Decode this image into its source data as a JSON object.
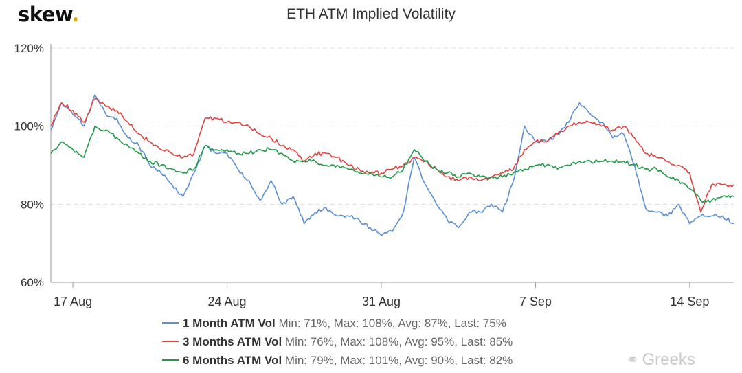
{
  "brand": {
    "name": "skew",
    "dot": "."
  },
  "watermark": {
    "icon": "wechat-icon",
    "text": "Greeks"
  },
  "colors": {
    "one_month": "#5b8fd6",
    "three_months": "#e2413e",
    "six_months": "#1f9a48",
    "grid": "#dddddd",
    "axis": "#555555"
  },
  "chart_data": {
    "type": "line",
    "title": "ETH ATM Implied Volatility",
    "xlabel": "",
    "ylabel": "",
    "x_range": [
      "2020-08-16",
      "2020-09-16"
    ],
    "x_ticks": [
      {
        "date": "2020-08-17",
        "label": "17 Aug"
      },
      {
        "date": "2020-08-24",
        "label": "24 Aug"
      },
      {
        "date": "2020-08-31",
        "label": "31 Aug"
      },
      {
        "date": "2020-09-07",
        "label": "7 Sep"
      },
      {
        "date": "2020-09-14",
        "label": "14 Sep"
      }
    ],
    "ylim": [
      60,
      120
    ],
    "y_ticks": [
      60,
      80,
      100,
      120
    ],
    "y_tick_labels": [
      "60%",
      "80%",
      "100%",
      "120%"
    ],
    "grid": true,
    "legend_position": "bottom-center",
    "series": [
      {
        "name": "1 Month ATM Vol",
        "stats": "Min: 71%, Max: 108%, Avg: 87%, Last: 75%",
        "color": "#5b8fd6",
        "points": [
          [
            "2020-08-16",
            99
          ],
          [
            "2020-08-16 12:00",
            106
          ],
          [
            "2020-08-17",
            103
          ],
          [
            "2020-08-17 12:00",
            100
          ],
          [
            "2020-08-18",
            108
          ],
          [
            "2020-08-18 12:00",
            103
          ],
          [
            "2020-08-19",
            102
          ],
          [
            "2020-08-19 12:00",
            97
          ],
          [
            "2020-08-20",
            95
          ],
          [
            "2020-08-20 12:00",
            90
          ],
          [
            "2020-08-21",
            88
          ],
          [
            "2020-08-21 12:00",
            85
          ],
          [
            "2020-08-22",
            82
          ],
          [
            "2020-08-22 12:00",
            88
          ],
          [
            "2020-08-23",
            95
          ],
          [
            "2020-08-23 12:00",
            93
          ],
          [
            "2020-08-24",
            93
          ],
          [
            "2020-08-24 12:00",
            89
          ],
          [
            "2020-08-25",
            86
          ],
          [
            "2020-08-25 12:00",
            81
          ],
          [
            "2020-08-26",
            86
          ],
          [
            "2020-08-26 12:00",
            80
          ],
          [
            "2020-08-27",
            82
          ],
          [
            "2020-08-27 12:00",
            75
          ],
          [
            "2020-08-28",
            78
          ],
          [
            "2020-08-28 12:00",
            79
          ],
          [
            "2020-08-29",
            77
          ],
          [
            "2020-08-29 12:00",
            77
          ],
          [
            "2020-08-30",
            76
          ],
          [
            "2020-08-30 12:00",
            74
          ],
          [
            "2020-08-31",
            72
          ],
          [
            "2020-08-31 12:00",
            73
          ],
          [
            "2020-09-01",
            78
          ],
          [
            "2020-09-01 12:00",
            92
          ],
          [
            "2020-09-02",
            85
          ],
          [
            "2020-09-02 12:00",
            80
          ],
          [
            "2020-09-03",
            76
          ],
          [
            "2020-09-03 12:00",
            74
          ],
          [
            "2020-09-04",
            78
          ],
          [
            "2020-09-04 12:00",
            78
          ],
          [
            "2020-09-05",
            80
          ],
          [
            "2020-09-05 12:00",
            78
          ],
          [
            "2020-09-06",
            86
          ],
          [
            "2020-09-06 12:00",
            100
          ],
          [
            "2020-09-07",
            96
          ],
          [
            "2020-09-07 12:00",
            96
          ],
          [
            "2020-09-08",
            98
          ],
          [
            "2020-09-08 12:00",
            101
          ],
          [
            "2020-09-09",
            106
          ],
          [
            "2020-09-09 12:00",
            103
          ],
          [
            "2020-09-10",
            101
          ],
          [
            "2020-09-10 12:00",
            97
          ],
          [
            "2020-09-11",
            98
          ],
          [
            "2020-09-11 12:00",
            90
          ],
          [
            "2020-09-12",
            79
          ],
          [
            "2020-09-12 12:00",
            78
          ],
          [
            "2020-09-13",
            77
          ],
          [
            "2020-09-13 12:00",
            80
          ],
          [
            "2020-09-14",
            75
          ],
          [
            "2020-09-14 12:00",
            77
          ],
          [
            "2020-09-15",
            77
          ],
          [
            "2020-09-15 12:00",
            77
          ],
          [
            "2020-09-16",
            75
          ]
        ]
      },
      {
        "name": "3 Months ATM Vol",
        "stats": "Min: 76%, Max: 108%, Avg: 95%, Last: 85%",
        "color": "#e2413e",
        "points": [
          [
            "2020-08-16",
            100
          ],
          [
            "2020-08-16 12:00",
            106
          ],
          [
            "2020-08-17",
            104
          ],
          [
            "2020-08-17 12:00",
            101
          ],
          [
            "2020-08-18",
            107
          ],
          [
            "2020-08-18 12:00",
            105
          ],
          [
            "2020-08-19",
            104
          ],
          [
            "2020-08-19 12:00",
            101
          ],
          [
            "2020-08-20",
            98
          ],
          [
            "2020-08-20 12:00",
            96
          ],
          [
            "2020-08-21",
            94
          ],
          [
            "2020-08-21 12:00",
            93
          ],
          [
            "2020-08-22",
            92
          ],
          [
            "2020-08-22 12:00",
            93
          ],
          [
            "2020-08-23",
            102
          ],
          [
            "2020-08-23 12:00",
            102
          ],
          [
            "2020-08-24",
            101
          ],
          [
            "2020-08-24 12:00",
            101
          ],
          [
            "2020-08-25",
            100
          ],
          [
            "2020-08-25 12:00",
            98
          ],
          [
            "2020-08-26",
            97
          ],
          [
            "2020-08-26 12:00",
            95
          ],
          [
            "2020-08-27",
            94
          ],
          [
            "2020-08-27 12:00",
            91
          ],
          [
            "2020-08-28",
            93
          ],
          [
            "2020-08-28 12:00",
            93
          ],
          [
            "2020-08-29",
            92
          ],
          [
            "2020-08-29 12:00",
            90
          ],
          [
            "2020-08-30",
            89
          ],
          [
            "2020-08-30 12:00",
            88
          ],
          [
            "2020-08-31",
            88
          ],
          [
            "2020-08-31 12:00",
            89
          ],
          [
            "2020-09-01",
            90
          ],
          [
            "2020-09-01 12:00",
            92
          ],
          [
            "2020-09-02",
            91
          ],
          [
            "2020-09-02 12:00",
            89
          ],
          [
            "2020-09-03",
            87
          ],
          [
            "2020-09-03 12:00",
            86
          ],
          [
            "2020-09-04",
            87
          ],
          [
            "2020-09-04 12:00",
            86
          ],
          [
            "2020-09-05",
            87
          ],
          [
            "2020-09-05 12:00",
            88
          ],
          [
            "2020-09-06",
            89
          ],
          [
            "2020-09-06 12:00",
            94
          ],
          [
            "2020-09-07",
            96
          ],
          [
            "2020-09-07 12:00",
            96
          ],
          [
            "2020-09-08",
            98
          ],
          [
            "2020-09-08 12:00",
            100
          ],
          [
            "2020-09-09",
            101
          ],
          [
            "2020-09-09 12:00",
            101
          ],
          [
            "2020-09-10",
            100
          ],
          [
            "2020-09-10 12:00",
            99
          ],
          [
            "2020-09-11",
            100
          ],
          [
            "2020-09-11 12:00",
            97
          ],
          [
            "2020-09-12",
            93
          ],
          [
            "2020-09-12 12:00",
            92
          ],
          [
            "2020-09-13",
            91
          ],
          [
            "2020-09-13 12:00",
            90
          ],
          [
            "2020-09-14",
            88
          ],
          [
            "2020-09-14 12:00",
            78
          ],
          [
            "2020-09-15",
            85
          ],
          [
            "2020-09-15 12:00",
            85
          ],
          [
            "2020-09-16",
            85
          ]
        ]
      },
      {
        "name": "6 Months ATM Vol",
        "stats": "Min: 79%, Max: 101%, Avg: 90%, Last: 82%",
        "color": "#1f9a48",
        "points": [
          [
            "2020-08-16",
            93
          ],
          [
            "2020-08-16 12:00",
            96
          ],
          [
            "2020-08-17",
            94
          ],
          [
            "2020-08-17 12:00",
            92
          ],
          [
            "2020-08-18",
            100
          ],
          [
            "2020-08-18 12:00",
            99
          ],
          [
            "2020-08-19",
            97
          ],
          [
            "2020-08-19 12:00",
            95
          ],
          [
            "2020-08-20",
            93
          ],
          [
            "2020-08-20 12:00",
            91
          ],
          [
            "2020-08-21",
            90
          ],
          [
            "2020-08-21 12:00",
            89
          ],
          [
            "2020-08-22",
            88
          ],
          [
            "2020-08-22 12:00",
            89
          ],
          [
            "2020-08-23",
            95
          ],
          [
            "2020-08-23 12:00",
            94
          ],
          [
            "2020-08-24",
            94
          ],
          [
            "2020-08-24 12:00",
            93
          ],
          [
            "2020-08-25",
            93
          ],
          [
            "2020-08-25 12:00",
            94
          ],
          [
            "2020-08-26",
            94
          ],
          [
            "2020-08-26 12:00",
            93
          ],
          [
            "2020-08-27",
            91
          ],
          [
            "2020-08-27 12:00",
            91
          ],
          [
            "2020-08-28",
            91
          ],
          [
            "2020-08-28 12:00",
            90
          ],
          [
            "2020-08-29",
            90
          ],
          [
            "2020-08-29 12:00",
            89
          ],
          [
            "2020-08-30",
            88
          ],
          [
            "2020-08-30 12:00",
            88
          ],
          [
            "2020-08-31",
            87
          ],
          [
            "2020-08-31 12:00",
            87
          ],
          [
            "2020-09-01",
            89
          ],
          [
            "2020-09-01 12:00",
            94
          ],
          [
            "2020-09-02",
            91
          ],
          [
            "2020-09-02 12:00",
            89
          ],
          [
            "2020-09-03",
            88
          ],
          [
            "2020-09-03 12:00",
            87
          ],
          [
            "2020-09-04",
            88
          ],
          [
            "2020-09-04 12:00",
            87
          ],
          [
            "2020-09-05",
            87
          ],
          [
            "2020-09-05 12:00",
            87
          ],
          [
            "2020-09-06",
            88
          ],
          [
            "2020-09-06 12:00",
            89
          ],
          [
            "2020-09-07",
            90
          ],
          [
            "2020-09-07 12:00",
            90
          ],
          [
            "2020-09-08",
            89
          ],
          [
            "2020-09-08 12:00",
            90
          ],
          [
            "2020-09-09",
            91
          ],
          [
            "2020-09-09 12:00",
            91
          ],
          [
            "2020-09-10",
            91
          ],
          [
            "2020-09-10 12:00",
            91
          ],
          [
            "2020-09-11",
            91
          ],
          [
            "2020-09-11 12:00",
            90
          ],
          [
            "2020-09-12",
            89
          ],
          [
            "2020-09-12 12:00",
            89
          ],
          [
            "2020-09-13",
            87
          ],
          [
            "2020-09-13 12:00",
            86
          ],
          [
            "2020-09-14",
            84
          ],
          [
            "2020-09-14 12:00",
            81
          ],
          [
            "2020-09-15",
            81
          ],
          [
            "2020-09-15 12:00",
            82
          ],
          [
            "2020-09-16",
            82
          ]
        ]
      }
    ]
  }
}
